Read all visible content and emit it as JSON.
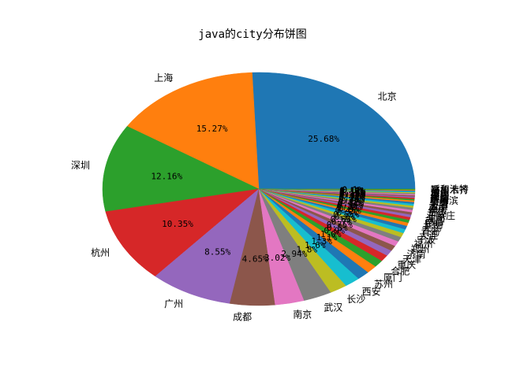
{
  "chart_data": {
    "type": "pie",
    "title": "java的city分布饼图",
    "start_angle_deg": 0,
    "direction": "counterclockwise",
    "slices": [
      {
        "label": "北京",
        "value": 25.68,
        "pct_label": "25.68%",
        "color": "#1f77b4"
      },
      {
        "label": "上海",
        "value": 15.27,
        "pct_label": "15.27%",
        "color": "#ff7f0e"
      },
      {
        "label": "深圳",
        "value": 12.16,
        "pct_label": "12.16%",
        "color": "#2ca02c"
      },
      {
        "label": "杭州",
        "value": 10.35,
        "pct_label": "10.35%",
        "color": "#d62728"
      },
      {
        "label": "广州",
        "value": 8.55,
        "pct_label": "8.55%",
        "color": "#9467bd"
      },
      {
        "label": "成都",
        "value": 4.65,
        "pct_label": "4.65%",
        "color": "#8c564b"
      },
      {
        "label": "南京",
        "value": 3.02,
        "pct_label": "3.02%",
        "color": "#e377c2"
      },
      {
        "label": "武汉",
        "value": 2.94,
        "pct_label": "2.94%",
        "color": "#7f7f7f"
      },
      {
        "label": "长沙",
        "value": 1.8,
        "pct_label": "1.8%",
        "color": "#bcbd22"
      },
      {
        "label": "西安",
        "value": 1.6,
        "pct_label": "1.6%",
        "color": "#17becf"
      },
      {
        "label": "苏州",
        "value": 1.3,
        "pct_label": "1.3%",
        "color": "#1f77b4"
      },
      {
        "label": "厦门",
        "value": 1.1,
        "pct_label": "1.1%",
        "color": "#ff7f0e"
      },
      {
        "label": "合肥",
        "value": 1.0,
        "pct_label": "1.0%",
        "color": "#2ca02c"
      },
      {
        "label": "重庆",
        "value": 0.9,
        "pct_label": "0.9%",
        "color": "#d62728"
      },
      {
        "label": "天津",
        "value": 0.8,
        "pct_label": "0.8%",
        "color": "#9467bd"
      },
      {
        "label": "济南",
        "value": 0.75,
        "pct_label": "0.75%",
        "color": "#8c564b"
      },
      {
        "label": "郑州",
        "value": 0.7,
        "pct_label": "0.7%",
        "color": "#e377c2"
      },
      {
        "label": "福州",
        "value": 0.65,
        "pct_label": "0.65%",
        "color": "#7f7f7f"
      },
      {
        "label": "宁波",
        "value": 0.6,
        "pct_label": "0.6%",
        "color": "#bcbd22"
      },
      {
        "label": "大连",
        "value": 0.55,
        "pct_label": "0.55%",
        "color": "#17becf"
      },
      {
        "label": "青岛",
        "value": 0.5,
        "pct_label": "0.5%",
        "color": "#1f77b4"
      },
      {
        "label": "无锡",
        "value": 0.45,
        "pct_label": "0.45%",
        "color": "#ff7f0e"
      },
      {
        "label": "昆明",
        "value": 0.4,
        "pct_label": "0.4%",
        "color": "#2ca02c"
      },
      {
        "label": "南昌",
        "value": 0.38,
        "pct_label": "0.38%",
        "color": "#d62728"
      },
      {
        "label": "沈阳",
        "value": 0.36,
        "pct_label": "0.36%",
        "color": "#9467bd"
      },
      {
        "label": "石家庄",
        "value": 0.34,
        "pct_label": "0.34%",
        "color": "#8c564b"
      },
      {
        "label": "东莞",
        "value": 0.32,
        "pct_label": "0.32%",
        "color": "#e377c2"
      },
      {
        "label": "佛山",
        "value": 0.3,
        "pct_label": "0.3%",
        "color": "#7f7f7f"
      },
      {
        "label": "南宁",
        "value": 0.28,
        "pct_label": "0.28%",
        "color": "#bcbd22"
      },
      {
        "label": "太原",
        "value": 0.26,
        "pct_label": "0.26%",
        "color": "#17becf"
      },
      {
        "label": "贵阳",
        "value": 0.24,
        "pct_label": "0.24%",
        "color": "#1f77b4"
      },
      {
        "label": "长春",
        "value": 0.22,
        "pct_label": "0.22%",
        "color": "#ff7f0e"
      },
      {
        "label": "哈尔滨",
        "value": 0.2,
        "pct_label": "0.2%",
        "color": "#2ca02c"
      },
      {
        "label": "珠海",
        "value": 0.18,
        "pct_label": "0.18%",
        "color": "#d62728"
      },
      {
        "label": "常州",
        "value": 0.17,
        "pct_label": "0.17%",
        "color": "#9467bd"
      },
      {
        "label": "温州",
        "value": 0.16,
        "pct_label": "0.16%",
        "color": "#8c564b"
      },
      {
        "label": "嘉兴",
        "value": 0.15,
        "pct_label": "0.15%",
        "color": "#e377c2"
      },
      {
        "label": "惠州",
        "value": 0.14,
        "pct_label": "0.14%",
        "color": "#7f7f7f"
      },
      {
        "label": "中山",
        "value": 0.13,
        "pct_label": "0.13%",
        "color": "#bcbd22"
      },
      {
        "label": "兰州",
        "value": 0.12,
        "pct_label": "0.12%",
        "color": "#17becf"
      },
      {
        "label": "海口",
        "value": 0.11,
        "pct_label": "0.11%",
        "color": "#1f77b4"
      },
      {
        "label": "乌鲁木齐",
        "value": 0.1,
        "pct_label": "0.1%",
        "color": "#ff7f0e"
      },
      {
        "label": "呼和浩特",
        "value": 0.1,
        "pct_label": "0.1%",
        "color": "#2ca02c"
      }
    ]
  }
}
